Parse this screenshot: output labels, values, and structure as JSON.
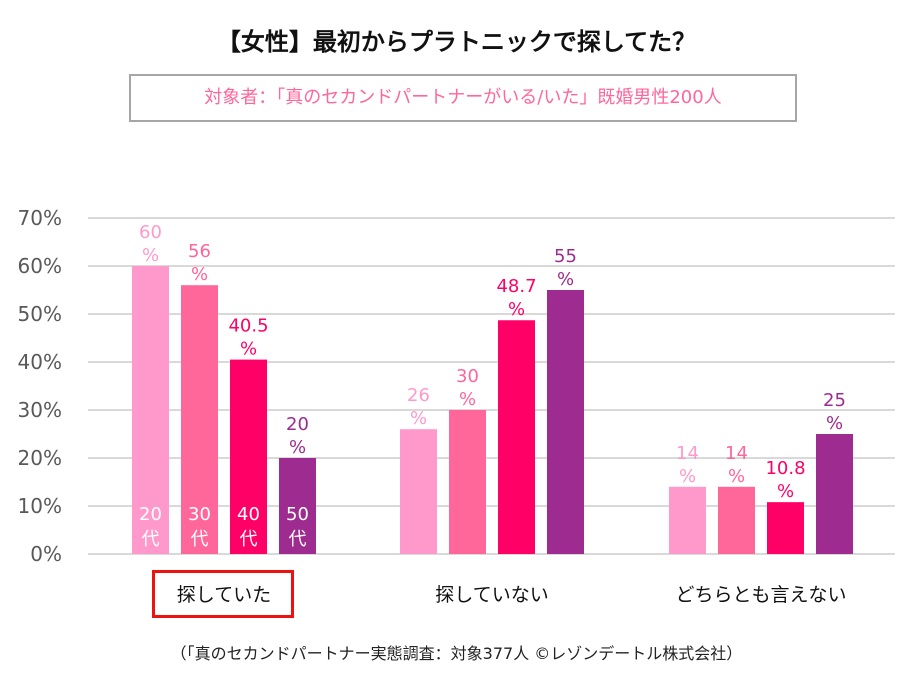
{
  "title": "【女性】最初からプラトニックで探してた？",
  "subtitle": "対象者：「真のセカンドパートナーがいる/いた」既婚男性200人",
  "footnote": "（「真のセカンドパートナー実態調査：対象377人 ©レゾンデートル株式会社）",
  "highlighted_category": "探していた",
  "chart_data": {
    "type": "bar",
    "title": "【女性】最初からプラトニックで探してた？",
    "xlabel": "",
    "ylabel": "",
    "ylim": [
      0,
      70
    ],
    "yticks": [
      0,
      10,
      20,
      30,
      40,
      50,
      60,
      70
    ],
    "ytick_labels": [
      "0%",
      "10%",
      "20%",
      "30%",
      "40%",
      "50%",
      "60%",
      "70%"
    ],
    "grid": true,
    "legend": "inside-bars-of-first-group",
    "categories": [
      "探していた",
      "探していない",
      "どちらとも言えない"
    ],
    "series": [
      {
        "name": "20代",
        "color": "#ff99cc",
        "values": [
          60,
          26,
          14
        ],
        "labels": [
          "60%",
          "26%",
          "14%"
        ]
      },
      {
        "name": "30代",
        "color": "#ff6699",
        "values": [
          56,
          30,
          14
        ],
        "labels": [
          "56%",
          "30%",
          "14%"
        ]
      },
      {
        "name": "40代",
        "color": "#ff0066",
        "values": [
          40.5,
          48.7,
          10.8
        ],
        "labels": [
          "40.5%",
          "48.7%",
          "10.8%"
        ]
      },
      {
        "name": "50代",
        "color": "#9e2b8f",
        "values": [
          20,
          55,
          25
        ],
        "labels": [
          "20%",
          "55%",
          "25%"
        ]
      }
    ]
  }
}
